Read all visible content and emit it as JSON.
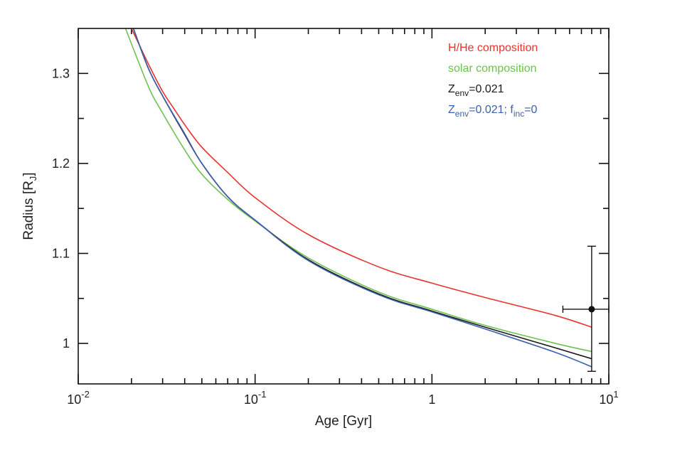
{
  "chart_data": {
    "type": "line",
    "xscale": "log",
    "xlim": [
      0.01,
      10
    ],
    "ylim": [
      0.955,
      1.35
    ],
    "xlabel_main": "Age [Gyr]",
    "ylabel": {
      "main": "Radius [R",
      "sub": "J",
      "close": "]"
    },
    "x_ticks": [
      {
        "value": 0.01,
        "base": "10",
        "exp": "-2"
      },
      {
        "value": 0.1,
        "base": "10",
        "exp": "-1"
      },
      {
        "value": 1,
        "base": "1",
        "exp": ""
      },
      {
        "value": 10,
        "base": "10",
        "exp": "1"
      }
    ],
    "y_ticks": [
      {
        "value": 1.0,
        "label": "1"
      },
      {
        "value": 1.1,
        "label": "1.1"
      },
      {
        "value": 1.2,
        "label": "1.2"
      },
      {
        "value": 1.3,
        "label": "1.3"
      }
    ],
    "series": [
      {
        "name": "H/He composition",
        "color": "#e8332e",
        "x": [
          0.02,
          0.025,
          0.03,
          0.035,
          0.04,
          0.05,
          0.07,
          0.1,
          0.2,
          0.5,
          1,
          2,
          5,
          8
        ],
        "y": [
          1.35,
          1.31,
          1.28,
          1.26,
          1.243,
          1.218,
          1.19,
          1.162,
          1.121,
          1.085,
          1.067,
          1.051,
          1.031,
          1.018
        ]
      },
      {
        "name": "solar composition",
        "color": "#6dc24f",
        "x": [
          0.0185,
          0.025,
          0.03,
          0.04,
          0.05,
          0.07,
          0.1,
          0.2,
          0.5,
          1,
          2,
          5,
          8
        ],
        "y": [
          1.35,
          1.285,
          1.256,
          1.215,
          1.188,
          1.16,
          1.136,
          1.095,
          1.057,
          1.038,
          1.02,
          1.0,
          0.991
        ]
      },
      {
        "name": "Z_env=0.021",
        "color": "#1a1a1a",
        "x": [
          0.0205,
          0.025,
          0.03,
          0.04,
          0.05,
          0.07,
          0.1,
          0.2,
          0.5,
          1,
          2,
          5,
          8
        ],
        "y": [
          1.35,
          1.305,
          1.275,
          1.232,
          1.2,
          1.163,
          1.137,
          1.093,
          1.055,
          1.036,
          1.018,
          0.995,
          0.983
        ]
      },
      {
        "name": "Z_env=0.021; f_inc=0",
        "color": "#3d5fae",
        "x": [
          0.0205,
          0.025,
          0.03,
          0.04,
          0.05,
          0.07,
          0.1,
          0.2,
          0.5,
          1,
          2,
          5,
          8
        ],
        "y": [
          1.35,
          1.305,
          1.275,
          1.233,
          1.2,
          1.163,
          1.137,
          1.092,
          1.054,
          1.035,
          1.016,
          0.99,
          0.974
        ]
      }
    ],
    "legend": [
      {
        "main": "H/He composition",
        "color": "#e8332e"
      },
      {
        "main": "solar composition",
        "color": "#6dc24f"
      },
      {
        "parts": [
          [
            "Z",
            "n"
          ],
          [
            "env",
            "s"
          ],
          [
            "=0.021",
            "n"
          ]
        ],
        "color": "#1a1a1a"
      },
      {
        "parts": [
          [
            "Z",
            "n"
          ],
          [
            "env",
            "s"
          ],
          [
            "=0.021; f",
            "n"
          ],
          [
            "inc",
            "s"
          ],
          [
            "=0",
            "n"
          ]
        ],
        "color": "#3d5fae"
      }
    ],
    "data_point": {
      "x": 8,
      "y": 1.038,
      "x_err": [
        5.5,
        10
      ],
      "y_err": [
        0.969,
        1.108
      ],
      "color": "#111111"
    }
  }
}
